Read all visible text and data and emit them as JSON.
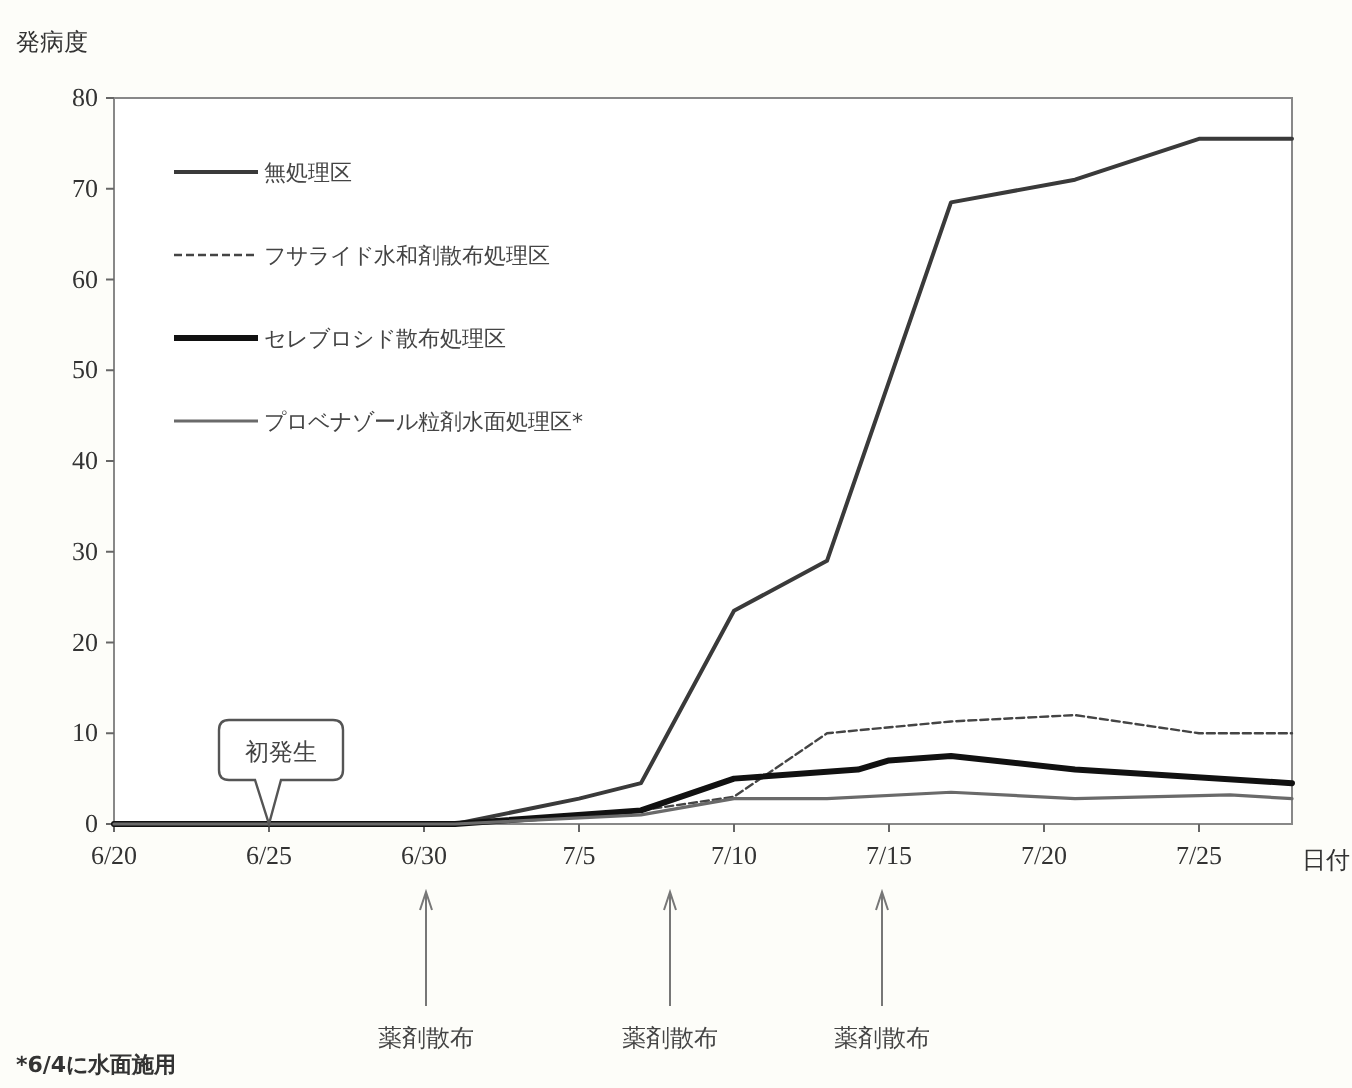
{
  "chart_data": {
    "type": "line",
    "ylabel": "発病度",
    "xlabel": "日付",
    "xlim": [
      "--06-20",
      "--07-28"
    ],
    "ylim": [
      0,
      80
    ],
    "xticks": [
      {
        "value": "--06-20",
        "label": "6/20"
      },
      {
        "value": "--06-25",
        "label": "6/25"
      },
      {
        "value": "--06-30",
        "label": "6/30"
      },
      {
        "value": "--07-05",
        "label": "7/5"
      },
      {
        "value": "--07-10",
        "label": "7/10"
      },
      {
        "value": "--07-15",
        "label": "7/15"
      },
      {
        "value": "--07-20",
        "label": "7/20"
      },
      {
        "value": "--07-25",
        "label": "7/25"
      }
    ],
    "yticks": [
      0,
      10,
      20,
      30,
      40,
      50,
      60,
      70,
      80
    ],
    "grid": false,
    "legend": "top left",
    "marker": "none",
    "series": [
      {
        "name": "無処理区",
        "color": "#3a3a3a",
        "line_style": "solid",
        "x": [
          "--06-20",
          "--07-01",
          "--07-05",
          "--07-07",
          "--07-10",
          "--07-13",
          "--07-17",
          "--07-21",
          "--07-25",
          "--07-28"
        ],
        "values": [
          0,
          0,
          2.8,
          4.5,
          23.5,
          29,
          68.5,
          71,
          75.5,
          75.5
        ]
      },
      {
        "name": "フサライド水和剤散布処理区",
        "color": "#444444",
        "line_style": "dashed",
        "x": [
          "--06-20",
          "--07-01",
          "--07-07",
          "--07-10",
          "--07-13",
          "--07-17",
          "--07-21",
          "--07-25",
          "--07-28"
        ],
        "values": [
          0,
          0,
          1.5,
          3,
          10,
          11.3,
          12,
          10,
          10
        ]
      },
      {
        "name": "セレブロシド散布処理区",
        "color": "#111111",
        "line_style": "solid",
        "x": [
          "--06-20",
          "--07-01",
          "--07-07",
          "--07-10",
          "--07-14",
          "--07-15",
          "--07-17",
          "--07-21",
          "--07-28"
        ],
        "values": [
          0,
          0,
          1.5,
          5,
          6,
          7,
          7.5,
          6,
          4.5
        ]
      },
      {
        "name": "プロベナゾール粒剤水面処理区*",
        "color": "#6a6a6a",
        "line_style": "solid",
        "x": [
          "--06-20",
          "--07-01",
          "--07-07",
          "--07-10",
          "--07-13",
          "--07-17",
          "--07-21",
          "--07-26",
          "--07-28"
        ],
        "values": [
          0,
          0,
          1,
          2.8,
          2.8,
          3.5,
          2.8,
          3.2,
          2.8
        ]
      }
    ],
    "annotations": [
      {
        "text": "初発生",
        "x": "--06-25",
        "y": 0
      },
      "薬剤散布",
      "薬剤散布",
      "薬剤散布",
      "*6/4に水面施用"
    ]
  }
}
